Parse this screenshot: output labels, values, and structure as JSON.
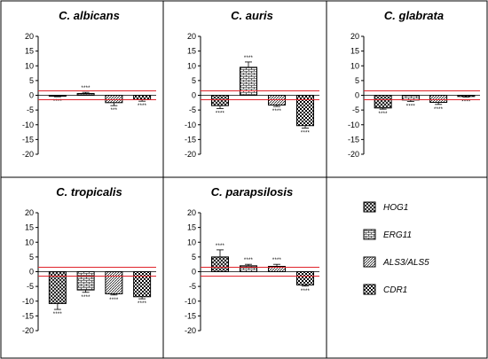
{
  "chart_data": [
    {
      "type": "bar",
      "title": "C. albicans",
      "categories": [
        "HOG1",
        "ERG11",
        "ALS3/ALS5",
        "CDR1"
      ],
      "values": [
        -0.3,
        0.6,
        -2.5,
        -1.4
      ],
      "errors": [
        0.2,
        0.4,
        1.0,
        0.6
      ],
      "significance": [
        "****",
        "****",
        "***",
        "****"
      ],
      "ylim": [
        -20,
        20
      ],
      "ytick_labels": [
        "20",
        "15",
        "10",
        "5",
        "0",
        "-5",
        "-10",
        "-15",
        "-20"
      ],
      "reference_lines": [
        1.5,
        -1.5
      ]
    },
    {
      "type": "bar",
      "title": "C. auris",
      "categories": [
        "HOG1",
        "ERG11",
        "ALS3/ALS5",
        "CDR1"
      ],
      "values": [
        -3.5,
        9.5,
        -3.3,
        -10.3
      ],
      "errors": [
        1.0,
        1.8,
        0.5,
        0.8
      ],
      "significance": [
        "****",
        "****",
        "****",
        "****"
      ],
      "ylim": [
        -20,
        20
      ],
      "ytick_labels": [
        "20",
        "15",
        "10",
        "5",
        "0",
        "-5",
        "-10",
        "-15",
        "-20"
      ],
      "reference_lines": [
        1.5,
        -1.5
      ]
    },
    {
      "type": "bar",
      "title": "C. glabrata",
      "categories": [
        "HOG1",
        "ERG11",
        "ALS3/ALS5",
        "CDR1"
      ],
      "values": [
        -4.3,
        -1.6,
        -2.4,
        -0.4
      ],
      "errors": [
        0.4,
        0.5,
        0.7,
        0.2
      ],
      "significance": [
        "****",
        "****",
        "****",
        "****"
      ],
      "ylim": [
        -20,
        20
      ],
      "ytick_labels": [
        "20",
        "15",
        "10",
        "5",
        "0",
        "-5",
        "-10",
        "-15",
        "-20"
      ],
      "reference_lines": [
        1.5,
        -1.5
      ]
    },
    {
      "type": "bar",
      "title": "C. tropicalis",
      "categories": [
        "HOG1",
        "ERG11",
        "ALS3/ALS5",
        "CDR1"
      ],
      "values": [
        -10.8,
        -6.2,
        -7.5,
        -8.5
      ],
      "errors": [
        2.0,
        0.8,
        0.4,
        0.7
      ],
      "significance": [
        "****",
        "****",
        "****",
        "****"
      ],
      "ylim": [
        -20,
        20
      ],
      "ytick_labels": [
        "20",
        "15",
        "10",
        "5",
        "0",
        "-5",
        "-10",
        "-15",
        "-20"
      ],
      "reference_lines": [
        1.5,
        -1.5
      ]
    },
    {
      "type": "bar",
      "title": "C. parapsilosis",
      "categories": [
        "HOG1",
        "ERG11",
        "ALS3/ALS5",
        "CDR1"
      ],
      "values": [
        5.0,
        2.0,
        1.8,
        -4.5
      ],
      "errors": [
        2.4,
        0.5,
        0.7,
        0.4
      ],
      "significance": [
        "****",
        "****",
        "****",
        "****"
      ],
      "ylim": [
        -20,
        20
      ],
      "ytick_labels": [
        "20",
        "15",
        "10",
        "5",
        "0",
        "-5",
        "-10",
        "-15",
        "-20"
      ],
      "reference_lines": [
        1.5,
        -1.5
      ]
    }
  ],
  "legend": {
    "items": [
      {
        "label": "HOG1",
        "pattern": "diagonal-cross"
      },
      {
        "label": "ERG11",
        "pattern": "bricks"
      },
      {
        "label": "ALS3/ALS5",
        "pattern": "diagonal-lines"
      },
      {
        "label": "CDR1",
        "pattern": "checker"
      }
    ]
  },
  "colors": {
    "bar_outline": "#000000",
    "reference_line": "#e0242b",
    "panel_border": "#000000"
  }
}
